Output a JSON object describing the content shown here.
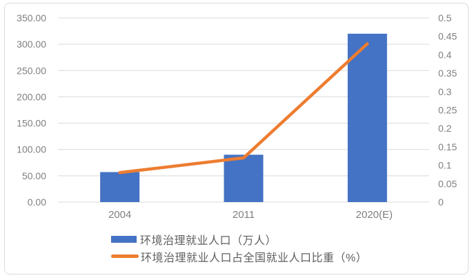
{
  "colors": {
    "bar": "#4472c4",
    "line": "#ed7d31",
    "grid": "#d9d9d9",
    "axis_text": "#7f7f7f",
    "legend_text": "#5f5f5f",
    "frame_border": "#dadada"
  },
  "chart_data": {
    "type": "bar",
    "subtype": "combo-bar-line-dual-axis",
    "title": "",
    "categories": [
      "2004",
      "2011",
      "2020(E)"
    ],
    "series": [
      {
        "name": "环境治理就业人口（万人）",
        "type": "bar",
        "axis": "left",
        "values": [
          57,
          90,
          320
        ]
      },
      {
        "name": "环境治理就业人口占全国就业人口比重（%）",
        "type": "line",
        "axis": "right",
        "values": [
          0.08,
          0.12,
          0.43
        ]
      }
    ],
    "left_axis": {
      "min": 0,
      "max": 350,
      "tick_labels": [
        "0.00",
        "50.00",
        "100.00",
        "150.00",
        "200.00",
        "250.00",
        "300.00",
        "350.00"
      ]
    },
    "right_axis": {
      "min": 0,
      "max": 0.5,
      "tick_labels": [
        "0",
        "0.05",
        "0.1",
        "0.15",
        "0.2",
        "0.25",
        "0.3",
        "0.35",
        "0.4",
        "0.45",
        "0.5"
      ]
    },
    "grid": "horizontal-on-left-axis-ticks",
    "legend_position": "bottom-left"
  }
}
